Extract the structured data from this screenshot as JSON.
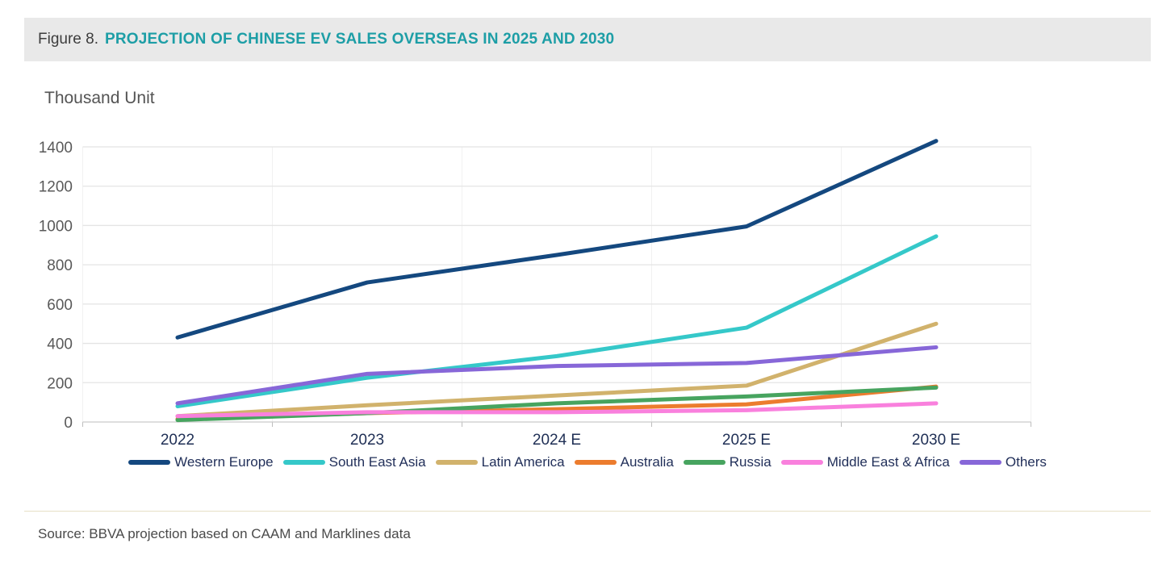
{
  "header": {
    "figure_label": "Figure 8.",
    "title": "PROJECTION OF CHINESE EV SALES OVERSEAS IN 2025 AND 2030"
  },
  "footer": {
    "source": "Source: BBVA projection based on CAAM and Marklines data"
  },
  "colors": {
    "header_bg": "#e9e9e9",
    "title_teal": "#1d9ea6",
    "axis_label_gray": "#595959",
    "x_label_navy": "#1f2f55",
    "separator_tan": "#e7dfc6"
  },
  "chart_data": {
    "type": "line",
    "title": "PROJECTION OF CHINESE EV SALES OVERSEAS IN 2025 AND 2030",
    "ylabel": "Thousand Unit",
    "xlabel": "",
    "categories": [
      "2022",
      "2023",
      "2024 E",
      "2025 E",
      "2030 E"
    ],
    "ylim": [
      0,
      1400
    ],
    "ytick_step": 200,
    "grid": true,
    "legend_position": "bottom",
    "series": [
      {
        "name": "Western Europe",
        "color": "#14487f",
        "values": [
          430,
          710,
          850,
          995,
          1430
        ]
      },
      {
        "name": "South East Asia",
        "color": "#35c8c9",
        "values": [
          80,
          225,
          335,
          480,
          945
        ]
      },
      {
        "name": "Latin America",
        "color": "#d1b26c",
        "values": [
          30,
          85,
          135,
          185,
          500
        ]
      },
      {
        "name": "Australia",
        "color": "#ec7c2e",
        "values": [
          15,
          45,
          65,
          90,
          180
        ]
      },
      {
        "name": "Russia",
        "color": "#47a45f",
        "values": [
          10,
          45,
          95,
          130,
          175
        ]
      },
      {
        "name": "Middle East & Africa",
        "color": "#f980dd",
        "values": [
          30,
          50,
          50,
          60,
          95
        ]
      },
      {
        "name": "Others",
        "color": "#8767d8",
        "values": [
          95,
          245,
          285,
          300,
          380
        ]
      }
    ]
  }
}
